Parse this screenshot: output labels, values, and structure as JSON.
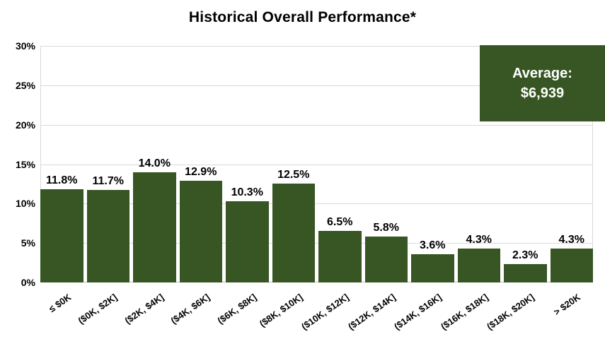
{
  "title": "Historical Overall Performance*",
  "colors": {
    "bar_green": "#375623",
    "callout_green": "#375623",
    "gridline": "#d9d9d9",
    "axis_line": "#bfbfbf",
    "text": "#000000",
    "callout_text": "#ffffff",
    "background": "#ffffff"
  },
  "callout": {
    "line1": "Average:",
    "line2": "$6,939"
  },
  "chart_data": {
    "type": "bar",
    "title": "Historical Overall Performance*",
    "categories": [
      "≤ $0K",
      "($0K, $2K]",
      "($2K, $4K]",
      "($4K, $6K]",
      "($6K, $8K]",
      "($8K, $10K]",
      "($10K, $12K]",
      "($12K, $14K]",
      "($14K, $16K]",
      "($16K, $18K]",
      "($18K, $20K]",
      "> $20K"
    ],
    "values": [
      11.8,
      11.7,
      14.0,
      12.9,
      10.3,
      12.5,
      6.5,
      5.8,
      3.6,
      4.3,
      2.3,
      4.3
    ],
    "value_labels": [
      "11.8%",
      "11.7%",
      "14.0%",
      "12.9%",
      "10.3%",
      "12.5%",
      "6.5%",
      "5.8%",
      "3.6%",
      "4.3%",
      "2.3%",
      "4.3%"
    ],
    "xlabel": "",
    "ylabel": "",
    "ylim": [
      0,
      30
    ],
    "yticks": [
      {
        "value": 0,
        "label": "0%"
      },
      {
        "value": 5,
        "label": "5%"
      },
      {
        "value": 10,
        "label": "10%"
      },
      {
        "value": 15,
        "label": "15%"
      },
      {
        "value": 20,
        "label": "20%"
      },
      {
        "value": 25,
        "label": "25%"
      },
      {
        "value": 30,
        "label": "30%"
      }
    ],
    "grid": "horizontal",
    "legend": "none",
    "annotations": [
      {
        "text": "Average: $6,939",
        "position": "top-right"
      }
    ]
  }
}
